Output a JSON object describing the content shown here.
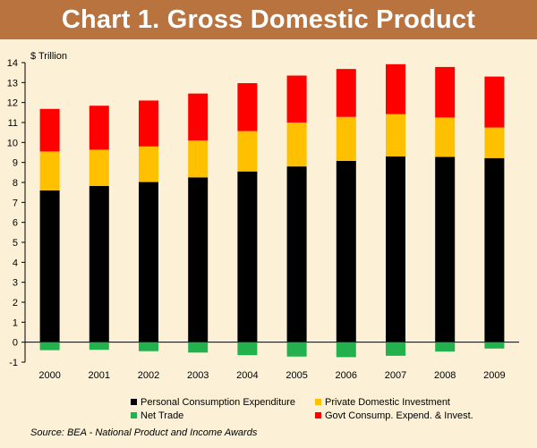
{
  "title": "Chart 1. Gross Domestic Product",
  "source": "Source: BEA - National Product and Income Awards",
  "colors": {
    "background": "#fcf1d6",
    "title_bar": "#b8733f",
    "pce": "#000000",
    "investment": "#ffc000",
    "net_trade": "#22b14c",
    "government": "#ff0000"
  },
  "chart_data": {
    "type": "bar",
    "stacked": true,
    "title": "Chart 1. Gross Domestic Product",
    "ylabel": "$ Trillion",
    "ylim": [
      -1,
      14
    ],
    "yticks": [
      -1,
      0,
      1,
      2,
      3,
      4,
      5,
      6,
      7,
      8,
      9,
      10,
      11,
      12,
      13,
      14
    ],
    "grid": false,
    "legend_position": "bottom",
    "categories": [
      "2000",
      "2001",
      "2002",
      "2003",
      "2004",
      "2005",
      "2006",
      "2007",
      "2008",
      "2009"
    ],
    "series": [
      {
        "name": "Personal Consumption Expenditure",
        "color": "#000000",
        "values": [
          7.6,
          7.82,
          8.02,
          8.25,
          8.55,
          8.8,
          9.08,
          9.3,
          9.28,
          9.22
        ]
      },
      {
        "name": "Private Domestic Investment",
        "color": "#ffc000",
        "values": [
          1.95,
          1.82,
          1.78,
          1.85,
          2.02,
          2.2,
          2.2,
          2.12,
          1.97,
          1.53
        ]
      },
      {
        "name": "Net Trade",
        "color": "#22b14c",
        "values": [
          -0.4,
          -0.38,
          -0.45,
          -0.52,
          -0.65,
          -0.72,
          -0.75,
          -0.68,
          -0.47,
          -0.32
        ]
      },
      {
        "name": "Govt Consump. Expend. & Invest.",
        "color": "#ff0000",
        "values": [
          2.13,
          2.2,
          2.3,
          2.35,
          2.4,
          2.35,
          2.4,
          2.5,
          2.53,
          2.55
        ]
      }
    ]
  }
}
